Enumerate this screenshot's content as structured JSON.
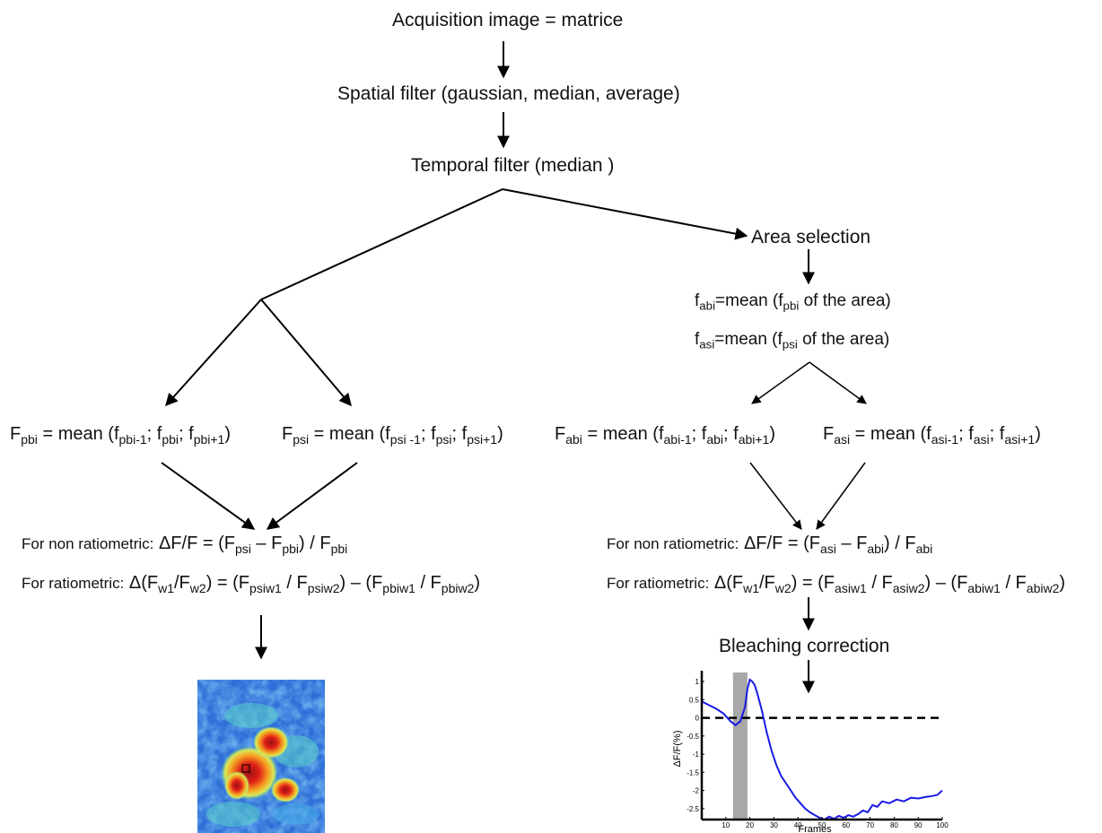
{
  "flow": {
    "acquisition": "Acquisition image = matrice",
    "spatial": "Spatial filter (gaussian, median, average)",
    "temporal": "Temporal filter (median )",
    "area_selection": "Area selection",
    "bleaching": "Bleaching correction"
  },
  "area_means": {
    "fabi": {
      "f": "f",
      "sub1": "abi",
      "mid": "=mean (f",
      "sub2": "pbi",
      "tail": " of the area)"
    },
    "fasi": {
      "f": "f",
      "sub1": "asi",
      "mid": "=mean (f",
      "sub2": "psi",
      "tail": " of the area)"
    }
  },
  "eq_left": {
    "Fpbi": {
      "F": "F",
      "sub": "pbi",
      "text": " = mean (f",
      "s1": "pbi-1",
      "s2": "pbi",
      "s3": "pbi+1"
    },
    "Fpsi": {
      "F": "F",
      "sub": "psi",
      "text": " = mean (f",
      "s1": "psi -1",
      "s2": "psi",
      "s3": "psi+1"
    }
  },
  "eq_right": {
    "Fabi": {
      "F": "F",
      "sub": "abi",
      "text": " = mean (f",
      "s1": "abi-1",
      "s2": "abi",
      "s3": "abi+1"
    },
    "Fasi": {
      "F": "F",
      "sub": "asi",
      "text": " = mean (f",
      "s1": "asi-1",
      "s2": "asi",
      "s3": "asi+1"
    }
  },
  "ratio_left": {
    "nonratio_label": "For non ratiometric:",
    "ratio_label": "For ratiometric:",
    "nr_a": "psi",
    "nr_b": "pbi",
    "nr_c": "pbi",
    "r_a": "psiw1",
    "r_b": "psiw2",
    "r_c": "pbiw1",
    "r_d": "pbiw2"
  },
  "ratio_right": {
    "nonratio_label": "For non ratiometric:",
    "ratio_label": "For ratiometric:",
    "nr_a": "asi",
    "nr_b": "abi",
    "nr_c": "abi",
    "r_a": "asiw1",
    "r_b": "asiw2",
    "r_c": "abiw1",
    "r_d": "abiw2"
  },
  "chart_data": {
    "type": "line",
    "xlabel": "Frames",
    "ylabel": "ΔF/F(%)",
    "xlim": [
      0,
      100
    ],
    "ylim": [
      -2.8,
      1.1
    ],
    "xticks": [
      "10",
      "20",
      "30",
      "40",
      "50",
      "60",
      "70",
      "80",
      "90",
      "100"
    ],
    "yticks": [
      "1",
      "0.5",
      "0",
      "-0.5",
      "-1",
      "-1.5",
      "-2",
      "-2.5"
    ],
    "baseline": 0,
    "stimulus_band": [
      13,
      19
    ],
    "series": [
      {
        "color": "#1a1ae6",
        "x": [
          0,
          3,
          6,
          9,
          12,
          14,
          16,
          18,
          19,
          20,
          21,
          22,
          23,
          25,
          27,
          29,
          31,
          33,
          35,
          37,
          39,
          41,
          43,
          45,
          47,
          49,
          51,
          53,
          55,
          57,
          59,
          61,
          63,
          65,
          67,
          69,
          71,
          73,
          75,
          78,
          81,
          84,
          87,
          90,
          93,
          96,
          98,
          100
        ],
        "y": [
          0.45,
          0.35,
          0.25,
          0.12,
          -0.1,
          -0.2,
          -0.1,
          0.3,
          0.8,
          1.05,
          1.0,
          0.9,
          0.7,
          0.2,
          -0.4,
          -0.9,
          -1.3,
          -1.6,
          -1.8,
          -2.0,
          -2.2,
          -2.35,
          -2.5,
          -2.6,
          -2.68,
          -2.75,
          -2.8,
          -2.72,
          -2.78,
          -2.7,
          -2.75,
          -2.68,
          -2.72,
          -2.65,
          -2.55,
          -2.6,
          -2.4,
          -2.45,
          -2.3,
          -2.35,
          -2.25,
          -2.3,
          -2.2,
          -2.22,
          -2.18,
          -2.15,
          -2.12,
          -2.0
        ]
      }
    ]
  },
  "colors": {
    "heatmap_low": "#1f5fd8",
    "heatmap_mid": "#7fe08a",
    "heatmap_high": "#e02018"
  }
}
